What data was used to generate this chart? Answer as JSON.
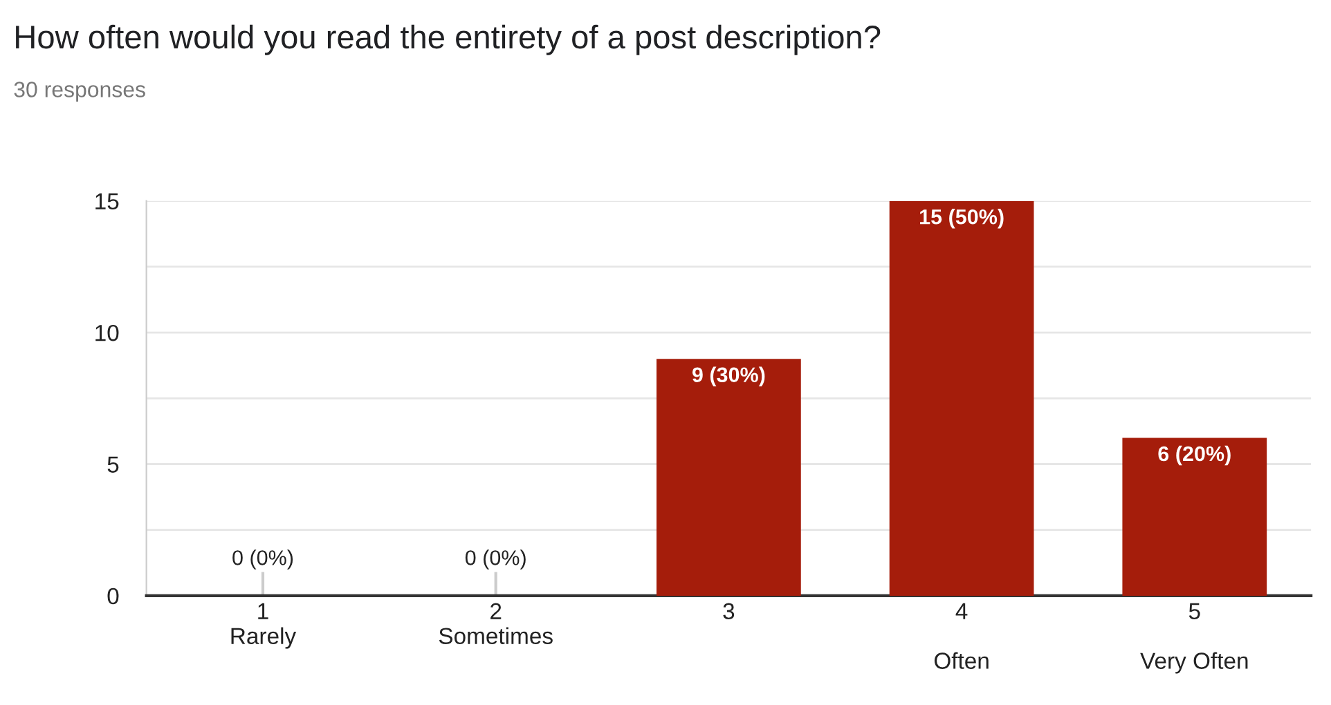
{
  "chart_data": {
    "type": "bar",
    "title": "How often would you read the entirety of a post description?",
    "subtitle": "30 responses",
    "categories": [
      "1\nRarely",
      "2\nSometimes",
      "3",
      "4\n\nOften",
      "5\n\nVery Often"
    ],
    "values": [
      0,
      0,
      9,
      15,
      6
    ],
    "color": "#a51d0b",
    "value_labels": [
      "0 (0%)",
      "0 (0%)",
      "9 (30%)",
      "15 (50%)",
      "6 (20%)"
    ],
    "ylim": [
      0,
      15
    ],
    "yticks": [
      0,
      {
        "value": 2.5,
        "label": null
      },
      5,
      {
        "value": 7.5,
        "label": null
      },
      10,
      {
        "value": 12.5,
        "label": null
      },
      15
    ],
    "grid": "y",
    "legend": false
  }
}
